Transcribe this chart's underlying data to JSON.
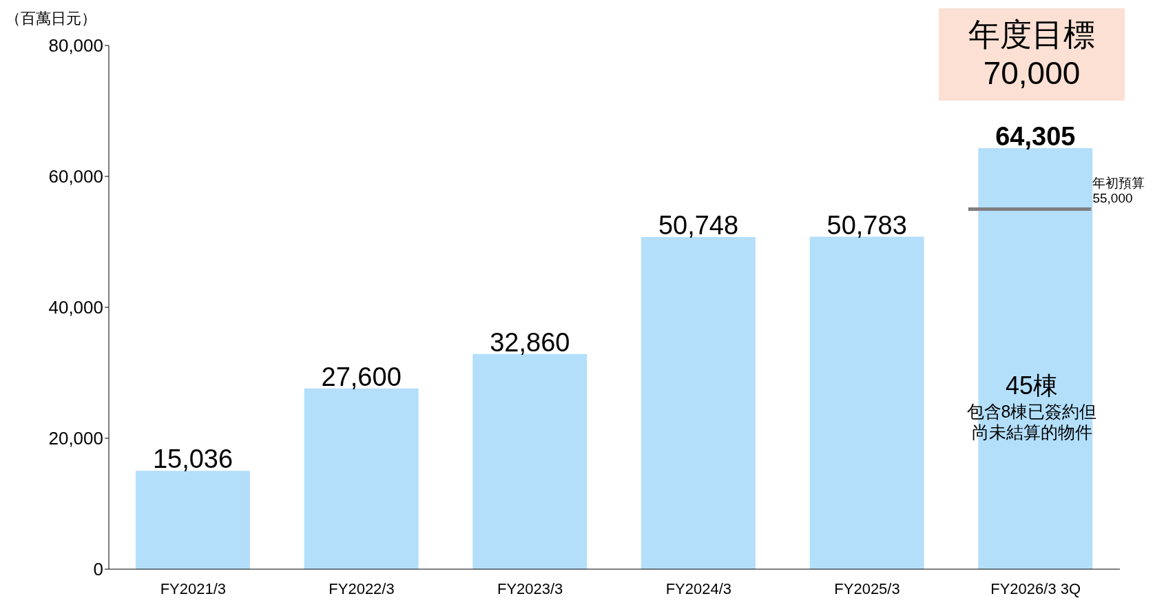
{
  "chart_data": {
    "type": "bar",
    "ylabel": "（百萬日元）",
    "categories": [
      "FY2021/3",
      "FY2022/3",
      "FY2023/3",
      "FY2024/3",
      "FY2025/3",
      "FY2026/3 3Q"
    ],
    "values": [
      15036,
      27600,
      32860,
      50748,
      50783,
      64305
    ],
    "color": "#b3dffb",
    "ylim": [
      0,
      80000
    ],
    "yticks": [
      {
        "value": 0,
        "label": "0"
      },
      {
        "value": 20000,
        "label": "20,000"
      },
      {
        "value": 40000,
        "label": "40,000"
      },
      {
        "value": 60000,
        "label": "60,000"
      },
      {
        "value": 80000,
        "label": "80,000"
      }
    ],
    "grid": false,
    "value_labels": [
      "15,036",
      "27,600",
      "32,860",
      "50,748",
      "50,783",
      "64,305"
    ],
    "ref_lines": [
      {
        "axis": "y",
        "value": 55000,
        "label": "年初預算\n55,000",
        "color": "#7f7f7f"
      }
    ],
    "annotations": [
      "年度目標\n70,000",
      "45棟",
      "包含8棟已簽約但尚未結算的物件"
    ]
  }
}
